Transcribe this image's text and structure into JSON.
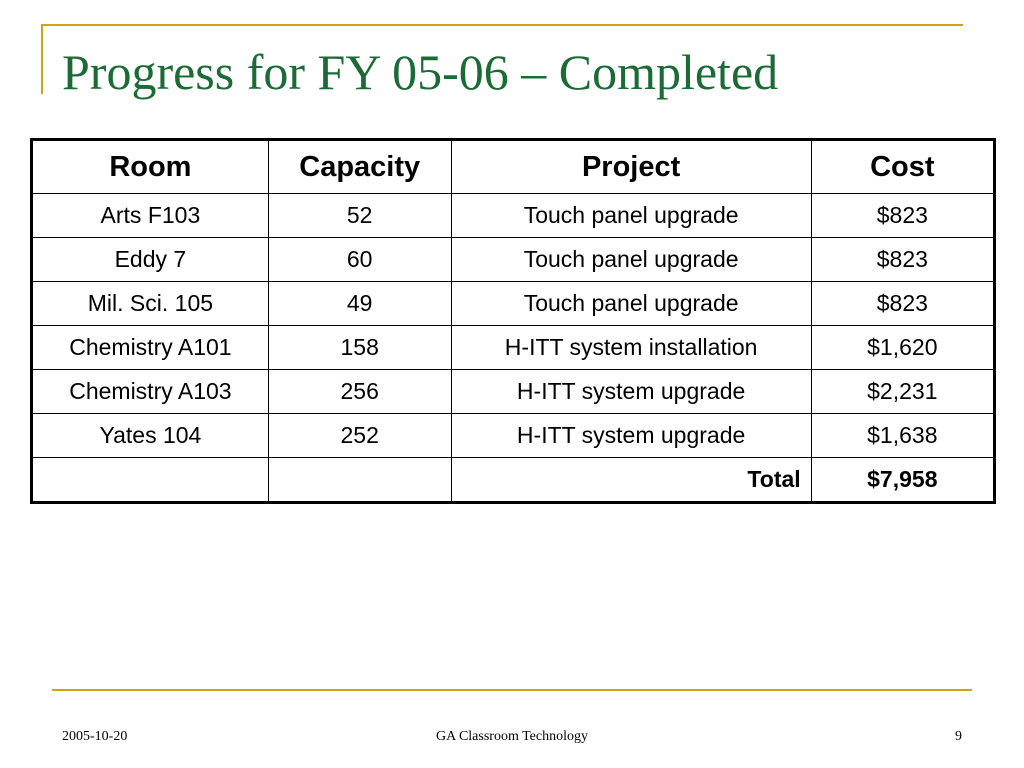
{
  "slide": {
    "title": "Progress for FY 05-06 – Completed"
  },
  "table": {
    "headers": {
      "room": "Room",
      "capacity": "Capacity",
      "project": "Project",
      "cost": "Cost"
    },
    "rows": [
      {
        "room": "Arts F103",
        "capacity": "52",
        "project": "Touch panel upgrade",
        "cost": "$823"
      },
      {
        "room": "Eddy 7",
        "capacity": "60",
        "project": "Touch panel upgrade",
        "cost": "$823"
      },
      {
        "room": "Mil. Sci. 105",
        "capacity": "49",
        "project": "Touch panel upgrade",
        "cost": "$823"
      },
      {
        "room": "Chemistry A101",
        "capacity": "158",
        "project": "H-ITT system installation",
        "cost": "$1,620"
      },
      {
        "room": "Chemistry A103",
        "capacity": "256",
        "project": "H-ITT system upgrade",
        "cost": "$2,231"
      },
      {
        "room": "Yates 104",
        "capacity": "252",
        "project": "H-ITT system upgrade",
        "cost": "$1,638"
      }
    ],
    "total": {
      "label": "Total",
      "value": "$7,958"
    }
  },
  "footer": {
    "date": "2005-10-20",
    "center": "GA Classroom Technology",
    "page": "9"
  },
  "colors": {
    "title": "#1a6b36",
    "accent_rule": "#d4a017"
  }
}
